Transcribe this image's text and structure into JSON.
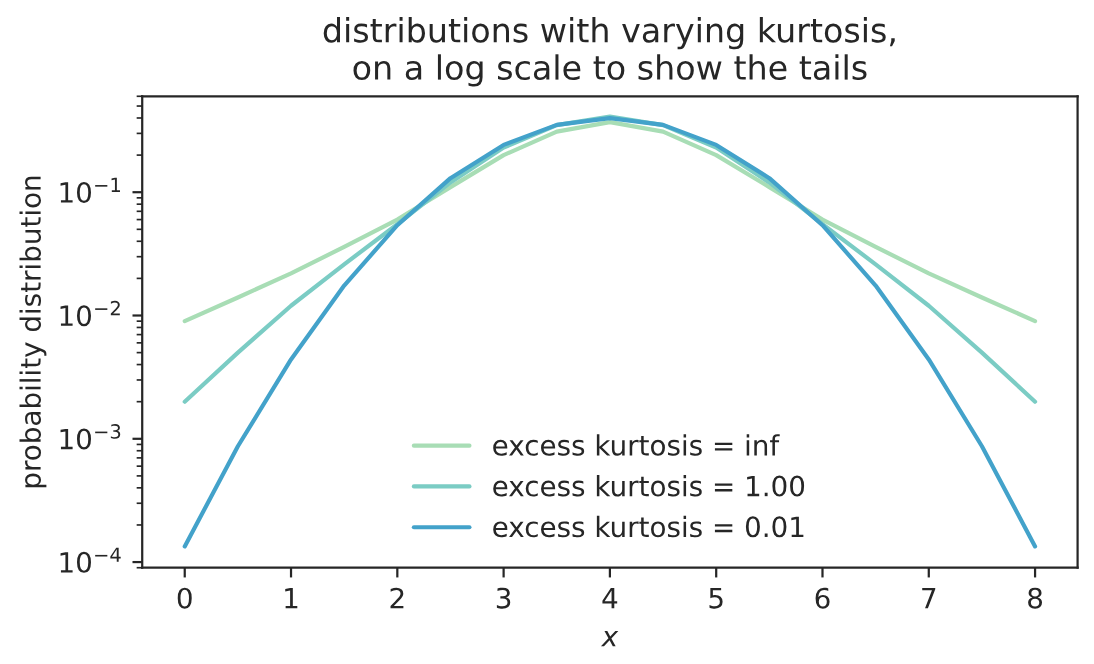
{
  "chart_data": {
    "type": "line",
    "title": "distributions with varying kurtosis,\non a log scale to show the tails",
    "xlabel": "x",
    "ylabel": "probability distribution",
    "x": [
      0,
      0.5,
      1,
      1.5,
      2,
      2.5,
      3,
      3.5,
      4,
      4.5,
      5,
      5.5,
      6,
      6.5,
      7,
      7.5,
      8
    ],
    "series": [
      {
        "name": "excess kurtosis = inf",
        "color": "#a8ddb5",
        "values": [
          0.009,
          0.014,
          0.022,
          0.036,
          0.06,
          0.11,
          0.2,
          0.31,
          0.37,
          0.31,
          0.2,
          0.11,
          0.06,
          0.036,
          0.022,
          0.014,
          0.009
        ]
      },
      {
        "name": "excess kurtosis = 1.00",
        "color": "#7bccc4",
        "values": [
          0.002,
          0.005,
          0.012,
          0.026,
          0.055,
          0.12,
          0.23,
          0.35,
          0.41,
          0.35,
          0.23,
          0.12,
          0.055,
          0.026,
          0.012,
          0.005,
          0.002
        ]
      },
      {
        "name": "excess kurtosis = 0.01",
        "color": "#43a2ca",
        "values": [
          0.000134,
          0.00087,
          0.0044,
          0.0175,
          0.054,
          0.13,
          0.242,
          0.352,
          0.399,
          0.352,
          0.242,
          0.13,
          0.054,
          0.0175,
          0.0044,
          0.00087,
          0.000134
        ]
      }
    ],
    "log": "y",
    "xlim": [
      -0.4,
      8.4
    ],
    "xticks": [
      0,
      1,
      2,
      3,
      4,
      5,
      6,
      7,
      8
    ],
    "ylim": [
      9e-05,
      0.6
    ],
    "yticks": [
      {
        "value": 0.0001,
        "label": "10$^{−4}$"
      },
      {
        "value": 0.001,
        "label": "10$^{−3}$"
      },
      {
        "value": 0.01,
        "label": "10$^{−2}$"
      },
      {
        "value": 0.1,
        "label": "10$^{−1}$"
      }
    ],
    "legend": "bottom",
    "grid": false
  }
}
